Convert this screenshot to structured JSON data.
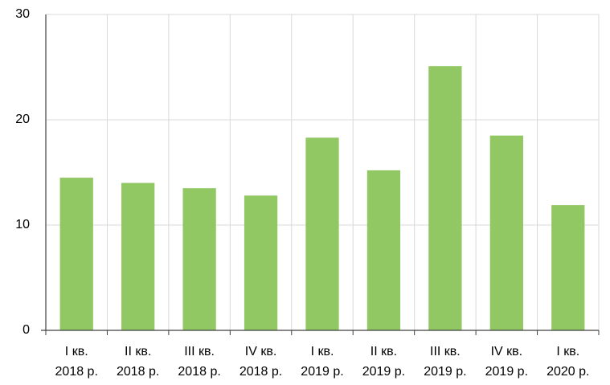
{
  "chart_data": {
    "type": "bar",
    "categories": [
      [
        "I кв.",
        "2018 р."
      ],
      [
        "II кв.",
        "2018 р."
      ],
      [
        "III кв.",
        "2018 р."
      ],
      [
        "IV кв.",
        "2018 р."
      ],
      [
        "I кв.",
        "2019 р."
      ],
      [
        "II кв.",
        "2019 р."
      ],
      [
        "III кв.",
        "2019 р."
      ],
      [
        "IV кв.",
        "2019 р."
      ],
      [
        "I кв.",
        "2020 р."
      ]
    ],
    "values": [
      14.5,
      14.0,
      13.5,
      12.8,
      18.3,
      15.2,
      25.1,
      18.5,
      11.9
    ],
    "color": "#92c864",
    "ylim": [
      0,
      30
    ],
    "yticks": [
      0,
      10,
      20,
      30
    ],
    "grid": true
  }
}
